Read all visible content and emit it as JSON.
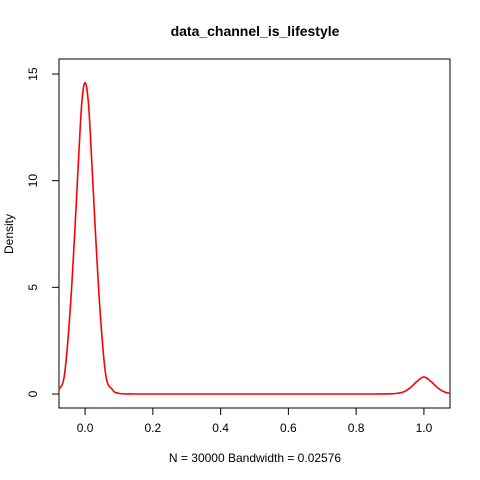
{
  "chart_data": {
    "type": "line",
    "title": "data_channel_is_lifestyle",
    "xlabel": "N = 30000   Bandwidth = 0.02576",
    "ylabel": "Density",
    "xlim": [
      -0.077,
      1.077
    ],
    "ylim": [
      0,
      15
    ],
    "x_ticks": [
      0.0,
      0.2,
      0.4,
      0.6,
      0.8,
      1.0
    ],
    "x_tick_labels": [
      "0.0",
      "0.2",
      "0.4",
      "0.6",
      "0.8",
      "1.0"
    ],
    "y_ticks": [
      0,
      5,
      10,
      15
    ],
    "y_tick_labels": [
      "0",
      "5",
      "10",
      "15"
    ],
    "grid": false,
    "series": [
      {
        "color": "#ff0000",
        "x": [
          -0.077,
          -0.06,
          -0.04,
          -0.02,
          -0.01,
          0.0,
          0.01,
          0.02,
          0.04,
          0.06,
          0.08,
          0.1,
          0.15,
          0.3,
          0.5,
          0.7,
          0.85,
          0.9,
          0.92,
          0.94,
          0.96,
          0.98,
          1.0,
          1.02,
          1.04,
          1.06,
          1.077
        ],
        "y": [
          0.22,
          1.0,
          4.9,
          10.8,
          13.6,
          14.6,
          13.6,
          10.8,
          4.9,
          1.0,
          0.22,
          0.03,
          0.0,
          0.0,
          0.0,
          0.0,
          0.0,
          0.01,
          0.03,
          0.1,
          0.3,
          0.6,
          0.8,
          0.6,
          0.3,
          0.1,
          0.03
        ]
      }
    ]
  }
}
